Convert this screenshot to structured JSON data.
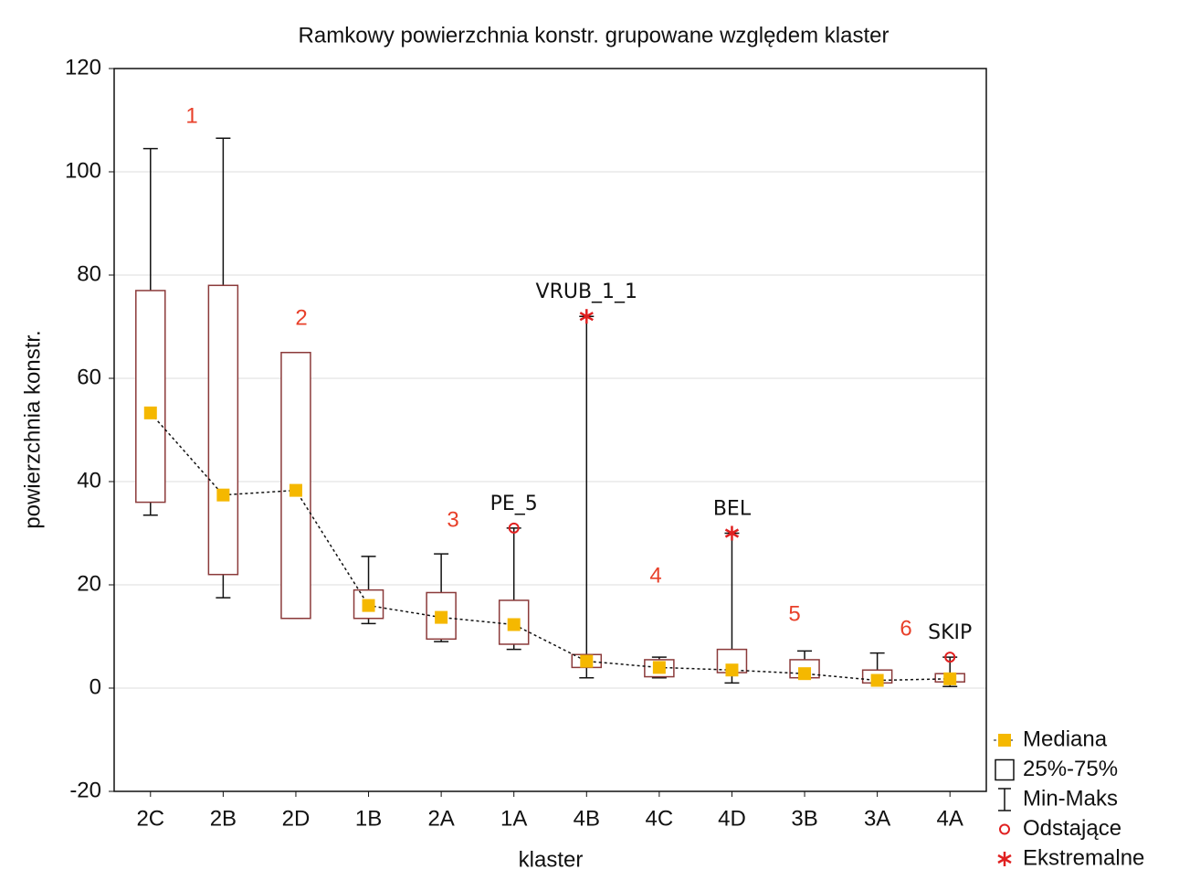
{
  "chart_data": {
    "type": "box",
    "title": "Ramkowy   powierzchnia konstr. grupowane względem klaster",
    "x_label": "klaster",
    "y_label": "powierzchnia konstr.",
    "categories": [
      "2C",
      "2B",
      "2D",
      "1B",
      "2A",
      "1A",
      "4B",
      "4C",
      "4D",
      "3B",
      "3A",
      "4A"
    ],
    "min": [
      33.5,
      17.5,
      13.5,
      12.5,
      9,
      7.5,
      2,
      2,
      1,
      2,
      1,
      0.3
    ],
    "q1": [
      36,
      22,
      13.5,
      13.5,
      9.5,
      8.5,
      4,
      2.2,
      3,
      2,
      1,
      1.2
    ],
    "median": [
      53.3,
      37.4,
      38.3,
      16,
      13.7,
      12.3,
      5.2,
      4,
      3.5,
      2.8,
      1.5,
      1.8
    ],
    "q3": [
      77,
      78,
      65,
      19,
      18.5,
      17,
      6.5,
      5.5,
      7.5,
      5.5,
      3.5,
      2.8
    ],
    "max": [
      104.5,
      106.5,
      65,
      25.5,
      26,
      31,
      72,
      6,
      30,
      7.2,
      6.8,
      6
    ],
    "outliers": [
      null,
      null,
      null,
      null,
      null,
      31,
      null,
      null,
      null,
      null,
      null,
      6
    ],
    "outlier_labels": [
      null,
      null,
      null,
      null,
      null,
      "PE_5",
      null,
      null,
      null,
      null,
      null,
      "SKIP"
    ],
    "extremes": [
      null,
      null,
      null,
      null,
      null,
      null,
      72,
      null,
      30,
      null,
      null,
      null
    ],
    "extreme_labels": [
      null,
      null,
      null,
      null,
      null,
      null,
      "VRUB_1_1",
      null,
      "BEL",
      null,
      null,
      null
    ],
    "group_labels": [
      "1",
      "2",
      "3",
      "4",
      "5",
      "6"
    ],
    "ylim": [
      -20,
      120
    ],
    "yticks": [
      -20,
      0,
      20,
      40,
      60,
      80,
      100,
      120
    ],
    "grid": true,
    "box_color": "#8b3a3a",
    "median_color": "#f5b800",
    "outlier_color": "#e02020",
    "annotation_color": "#e8402a",
    "legend": [
      "Mediana",
      "25%-75%",
      "Min-Maks",
      "Odstające",
      "Ekstremalne"
    ],
    "legend_position": "lower right"
  }
}
